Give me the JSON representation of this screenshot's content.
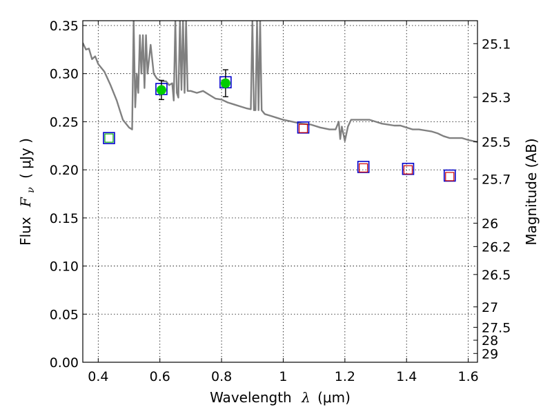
{
  "chart_data": {
    "type": "scatter",
    "title": "",
    "xlabel_text": "Wavelength",
    "xlabel_symbol": "λ",
    "xlabel_unit": "(μm)",
    "ylabel_text": "Flux",
    "ylabel_symbol": "F",
    "ylabel_subscript": "ν",
    "ylabel_unit": "( μJy )",
    "y2label": "Magnitude (AB)",
    "xlim": [
      0.35,
      1.63
    ],
    "ylim": [
      0.0,
      0.355
    ],
    "grid": true,
    "x_ticks": [
      {
        "value": 0.4,
        "label": "0.4"
      },
      {
        "value": 0.6,
        "label": "0.6"
      },
      {
        "value": 0.8,
        "label": "0.8"
      },
      {
        "value": 1.0,
        "label": "1"
      },
      {
        "value": 1.2,
        "label": "1.2"
      },
      {
        "value": 1.4,
        "label": "1.4"
      },
      {
        "value": 1.6,
        "label": "1.6"
      }
    ],
    "y_ticks": [
      {
        "value": 0.0,
        "label": "0.00"
      },
      {
        "value": 0.05,
        "label": "0.05"
      },
      {
        "value": 0.1,
        "label": "0.10"
      },
      {
        "value": 0.15,
        "label": "0.15"
      },
      {
        "value": 0.2,
        "label": "0.20"
      },
      {
        "value": 0.25,
        "label": "0.25"
      },
      {
        "value": 0.3,
        "label": "0.30"
      },
      {
        "value": 0.35,
        "label": "0.35"
      }
    ],
    "y2_ticks": [
      {
        "mag": 25.1,
        "label": "25.1"
      },
      {
        "mag": 25.3,
        "label": "25.3"
      },
      {
        "mag": 25.5,
        "label": "25.5"
      },
      {
        "mag": 25.7,
        "label": "25.7"
      },
      {
        "mag": 26,
        "label": "26"
      },
      {
        "mag": 26.2,
        "label": "26.2"
      },
      {
        "mag": 26.5,
        "label": "26.5"
      },
      {
        "mag": 27,
        "label": "27"
      },
      {
        "mag": 27.5,
        "label": "27.5"
      },
      {
        "mag": 28,
        "label": "28"
      },
      {
        "mag": 29,
        "label": "29"
      }
    ],
    "series": [
      {
        "name": "model-sed",
        "kind": "line",
        "color": "#808080",
        "x": [
          0.35,
          0.36,
          0.37,
          0.38,
          0.39,
          0.4,
          0.42,
          0.44,
          0.46,
          0.47,
          0.48,
          0.49,
          0.5,
          0.505,
          0.51,
          0.515,
          0.52,
          0.525,
          0.53,
          0.535,
          0.54,
          0.545,
          0.55,
          0.555,
          0.56,
          0.57,
          0.58,
          0.59,
          0.6,
          0.61,
          0.62,
          0.63,
          0.64,
          0.645,
          0.65,
          0.655,
          0.66,
          0.665,
          0.67,
          0.675,
          0.68,
          0.685,
          0.69,
          0.7,
          0.72,
          0.74,
          0.76,
          0.78,
          0.8,
          0.82,
          0.84,
          0.86,
          0.88,
          0.895,
          0.9,
          0.905,
          0.91,
          0.915,
          0.92,
          0.925,
          0.93,
          0.94,
          0.96,
          0.98,
          1.0,
          1.03,
          1.06,
          1.09,
          1.12,
          1.15,
          1.17,
          1.18,
          1.185,
          1.19,
          1.2,
          1.21,
          1.22,
          1.24,
          1.26,
          1.28,
          1.3,
          1.32,
          1.34,
          1.36,
          1.38,
          1.4,
          1.42,
          1.44,
          1.46,
          1.48,
          1.5,
          1.52,
          1.54,
          1.56,
          1.58,
          1.6,
          1.63
        ],
        "y": [
          0.332,
          0.325,
          0.326,
          0.315,
          0.318,
          0.31,
          0.302,
          0.288,
          0.272,
          0.262,
          0.252,
          0.248,
          0.244,
          0.243,
          0.242,
          0.355,
          0.265,
          0.3,
          0.28,
          0.34,
          0.3,
          0.34,
          0.285,
          0.34,
          0.3,
          0.33,
          0.3,
          0.295,
          0.293,
          0.292,
          0.292,
          0.288,
          0.29,
          0.272,
          0.355,
          0.28,
          0.275,
          0.355,
          0.283,
          0.355,
          0.28,
          0.355,
          0.282,
          0.282,
          0.28,
          0.282,
          0.278,
          0.274,
          0.273,
          0.27,
          0.268,
          0.266,
          0.264,
          0.263,
          0.355,
          0.262,
          0.262,
          0.355,
          0.262,
          0.355,
          0.262,
          0.258,
          0.256,
          0.254,
          0.252,
          0.25,
          0.248,
          0.247,
          0.244,
          0.242,
          0.242,
          0.25,
          0.232,
          0.245,
          0.23,
          0.245,
          0.252,
          0.252,
          0.252,
          0.252,
          0.25,
          0.248,
          0.247,
          0.246,
          0.246,
          0.244,
          0.242,
          0.242,
          0.241,
          0.24,
          0.238,
          0.235,
          0.233,
          0.233,
          0.233,
          0.231,
          0.229
        ]
      },
      {
        "name": "observed-photometry",
        "kind": "points-with-errors",
        "color": "#00cc00",
        "x": [
          0.605,
          0.813
        ],
        "y": [
          0.283,
          0.29
        ],
        "yerr": [
          0.01,
          0.014
        ]
      },
      {
        "name": "model-photometry-blue-squares",
        "kind": "markers",
        "color": "#0000cc",
        "x": [
          0.435,
          0.605,
          0.813,
          1.065,
          1.26,
          1.405,
          1.54
        ],
        "y": [
          0.233,
          0.284,
          0.291,
          0.244,
          0.203,
          0.201,
          0.194
        ]
      },
      {
        "name": "green-open-squares",
        "kind": "markers",
        "color": "#00aa00",
        "x": [
          0.435
        ],
        "y": [
          0.233
        ]
      },
      {
        "name": "red-open-squares",
        "kind": "markers",
        "color": "#cc0000",
        "x": [
          1.065,
          1.26,
          1.405,
          1.54
        ],
        "y": [
          0.243,
          0.202,
          0.2,
          0.193
        ]
      }
    ]
  }
}
